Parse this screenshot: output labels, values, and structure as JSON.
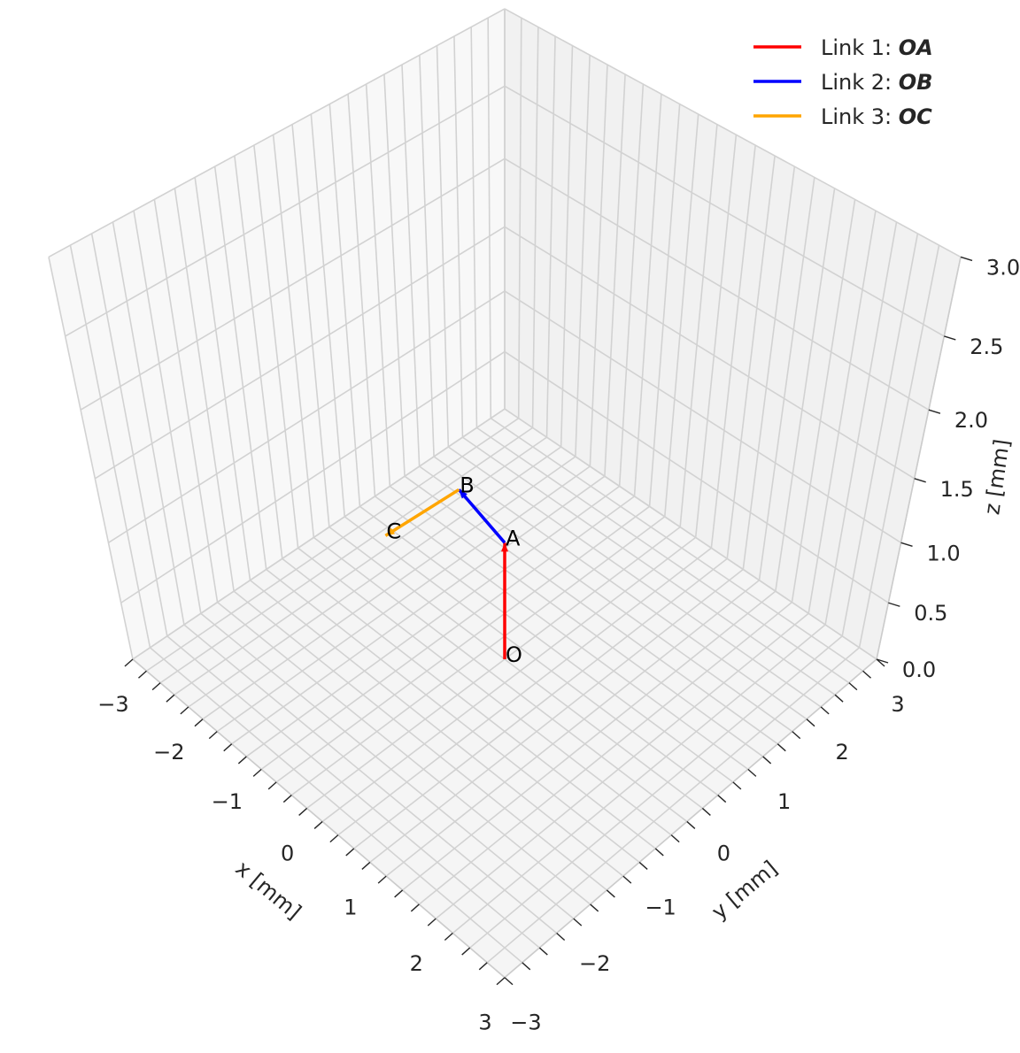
{
  "chart_data": {
    "type": "3d-line",
    "xlabel": "x [mm]",
    "ylabel": "y [mm]",
    "zlabel": "z [mm]",
    "xlim": [
      -3,
      3
    ],
    "ylim": [
      -3,
      3
    ],
    "zlim": [
      0,
      3
    ],
    "grid": true,
    "legend_placement": "top-right",
    "x_ticks": [
      "−3",
      "−2",
      "−1",
      "0",
      "1",
      "2",
      "3"
    ],
    "y_ticks": [
      "−3",
      "−2",
      "−1",
      "0",
      "1",
      "2",
      "3"
    ],
    "z_ticks": [
      "0.0",
      "0.5",
      "1.0",
      "1.5",
      "2.0",
      "2.5",
      "3.0"
    ],
    "x_tick_values": [
      -3,
      -2,
      -1,
      0,
      1,
      2,
      3
    ],
    "y_tick_values": [
      -3,
      -2,
      -1,
      0,
      1,
      2,
      3
    ],
    "z_tick_values": [
      0,
      0.5,
      1,
      1.5,
      2,
      2.5,
      3
    ],
    "points": [
      {
        "label": "O",
        "xyz": [
          0,
          0,
          0
        ]
      },
      {
        "label": "A",
        "xyz": [
          0,
          0,
          1
        ]
      },
      {
        "label": "B",
        "xyz": [
          -0.93,
          0.22,
          1
        ]
      },
      {
        "label": "C",
        "xyz": [
          -0.98,
          -0.83,
          1
        ]
      }
    ],
    "series": [
      {
        "name_prefix": "Link 1: ",
        "name_math": "OA",
        "color": "#ff0000",
        "from": "O",
        "to": "A"
      },
      {
        "name_prefix": "Link 2: ",
        "name_math": "OB",
        "color": "#0000ff",
        "from": "A",
        "to": "B"
      },
      {
        "name_prefix": "Link 3: ",
        "name_math": "OC",
        "color": "#ffa500",
        "from": "B",
        "to": "C"
      }
    ]
  },
  "colors": {
    "grid": "#d2d2d2",
    "floor_pane": "#f5f5f5",
    "left_pane": "#f8f8f8",
    "right_pane": "#f1f1f1",
    "axis_text": "#262626"
  }
}
